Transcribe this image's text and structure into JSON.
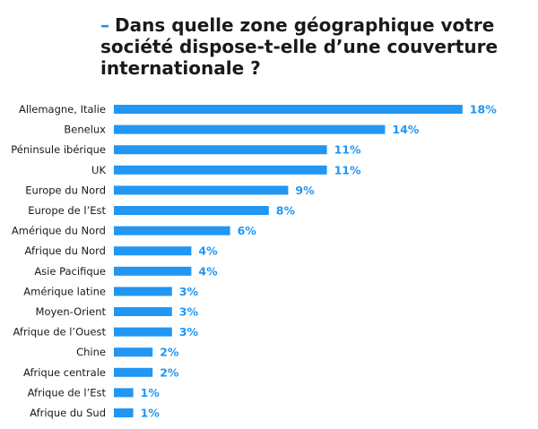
{
  "title_dash": "–",
  "title": "Dans quelle zone géographique votre société dispose-t-elle d’une couverture internationale ?",
  "colors": {
    "bar": "#2196f3",
    "value_label": "#2196f3"
  },
  "chart_data": {
    "type": "bar",
    "orientation": "horizontal",
    "title": "Dans quelle zone géographique votre société dispose-t-elle d’une couverture internationale ?",
    "xlabel": "",
    "ylabel": "",
    "grid": false,
    "value_suffix": "%",
    "categories": [
      "Allemagne, Italie",
      "Benelux",
      "Péninsule ibérique",
      "UK",
      "Europe du Nord",
      "Europe de l’Est",
      "Amérique du Nord",
      "Afrique du Nord",
      "Asie Pacifique",
      "Amérique latine",
      "Moyen-Orient",
      "Afrique de l’Ouest",
      "Chine",
      "Afrique centrale",
      "Afrique de l’Est",
      "Afrique du Sud"
    ],
    "values": [
      18,
      14,
      11,
      11,
      9,
      8,
      6,
      4,
      4,
      3,
      3,
      3,
      2,
      2,
      1,
      1
    ],
    "value_labels": [
      "18%",
      "14%",
      "11%",
      "11%",
      "9%",
      "8%",
      "6%",
      "4%",
      "4%",
      "3%",
      "3%",
      "3%",
      "2%",
      "2%",
      "1%",
      "1%"
    ]
  }
}
